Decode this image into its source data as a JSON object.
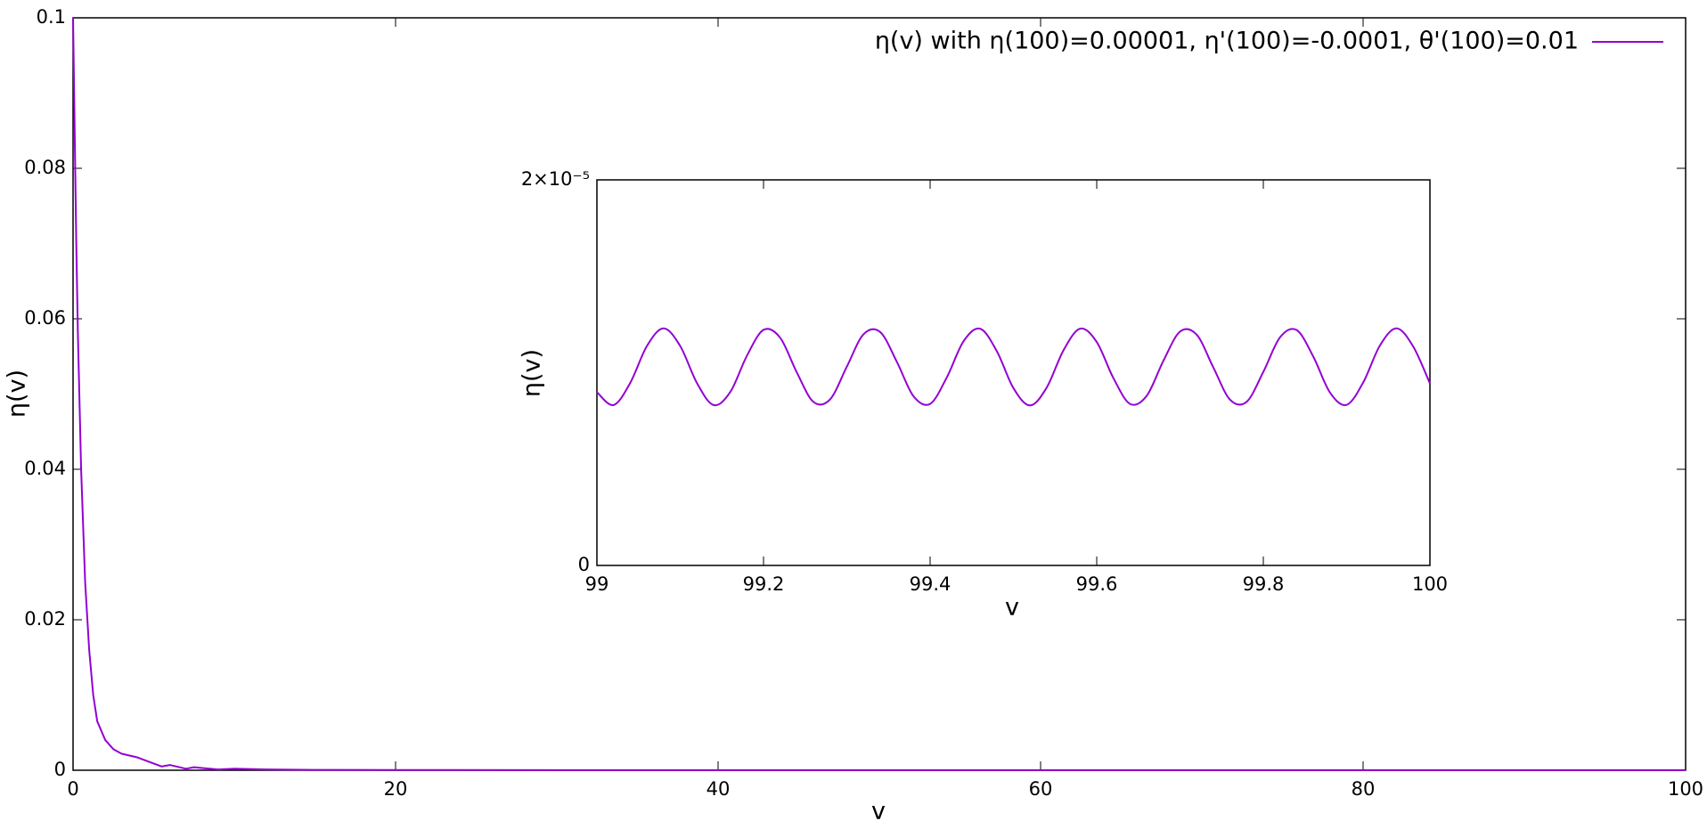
{
  "chart_data": [
    {
      "type": "line",
      "x_label": "v",
      "y_label": "η(v)",
      "x": [
        0,
        0.1,
        0.2,
        0.3,
        0.5,
        0.75,
        1,
        1.25,
        1.5,
        2,
        2.5,
        3,
        4,
        5,
        5.5,
        6,
        7,
        7.5,
        8,
        9,
        10,
        12,
        15,
        20,
        30,
        40,
        60,
        80,
        100
      ],
      "series": [
        {
          "name": "η(v) with η(100)=0.00001, η'(100)=-0.0001, θ'(100)=0.01",
          "color": "#9400d3",
          "values": [
            0.1,
            0.085,
            0.07,
            0.058,
            0.04,
            0.025,
            0.016,
            0.01,
            0.0065,
            0.004,
            0.0028,
            0.0022,
            0.0017,
            0.0009,
            0.0005,
            0.0007,
            0.0002,
            0.0004,
            0.0003,
            0.0001,
            0.0002,
            0.0001,
            5e-05,
            3e-05,
            2e-05,
            1e-05,
            1e-05,
            1e-05,
            1e-05
          ]
        }
      ],
      "xlim": [
        0,
        100
      ],
      "ylim": [
        0,
        0.1
      ],
      "xticks": [
        0,
        20,
        40,
        60,
        80,
        100
      ],
      "yticks": [
        0,
        0.02,
        0.04,
        0.06,
        0.08,
        0.1
      ],
      "legend": "top right"
    },
    {
      "type": "line",
      "x_label": "v",
      "y_label": "η(v)",
      "color": "#9400d3",
      "x": [
        99,
        99.02,
        99.04,
        99.06,
        99.08,
        99.1,
        99.12,
        99.14,
        99.16,
        99.18,
        99.2,
        99.22,
        99.24,
        99.26,
        99.28,
        99.3,
        99.32,
        99.34,
        99.36,
        99.38,
        99.4,
        99.42,
        99.44,
        99.46,
        99.48,
        99.5,
        99.52,
        99.54,
        99.56,
        99.58,
        99.6,
        99.62,
        99.64,
        99.66,
        99.68,
        99.7,
        99.72,
        99.74,
        99.76,
        99.78,
        99.8,
        99.82,
        99.84,
        99.86,
        99.88,
        99.9,
        99.92,
        99.94,
        99.96,
        99.98,
        100
      ],
      "values": [
        8.99e-06,
        8.32e-06,
        9.47e-06,
        1.138e-05,
        1.23e-05,
        1.138e-05,
        9.47e-06,
        8.32e-06,
        8.99e-06,
        1.087e-05,
        1.222e-05,
        1.181e-05,
        1.001e-05,
        8.48e-06,
        8.62e-06,
        1.031e-05,
        1.199e-05,
        1.211e-05,
        1.057e-05,
        8.78e-06,
        8.38e-06,
        9.75e-06,
        1.162e-05,
        1.228e-05,
        1.112e-05,
        9.2e-06,
        8.3e-06,
        9.23e-06,
        1.115e-05,
        1.228e-05,
        1.159e-05,
        9.72e-06,
        8.38e-06,
        8.8e-06,
        1.061e-05,
        1.213e-05,
        1.197e-05,
        1.027e-05,
        8.6e-06,
        8.49e-06,
        1.004e-05,
        1.183e-05,
        1.221e-05,
        1.083e-05,
        8.97e-06,
        8.33e-06,
        9.5e-06,
        1.141e-05,
        1.23e-05,
        1.135e-05,
        9.44e-06
      ],
      "xlim": [
        99,
        100
      ],
      "ylim": [
        0,
        2e-05
      ],
      "xticks": [
        99,
        99.2,
        99.4,
        99.6,
        99.8,
        100
      ],
      "yticks": [
        0,
        {
          "value": 2e-05,
          "label": "2×10⁻⁵"
        }
      ]
    }
  ]
}
